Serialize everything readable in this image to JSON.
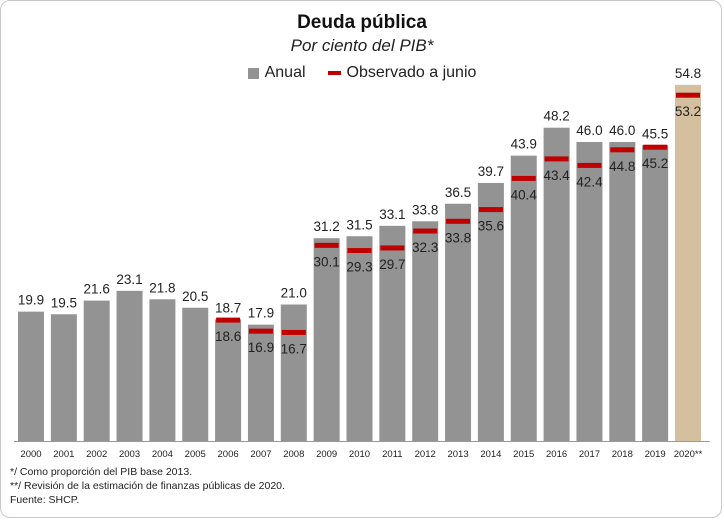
{
  "chart_data": {
    "type": "bar",
    "title": "Deuda pública",
    "subtitle": "Por ciento del PIB*",
    "categories": [
      "2000",
      "2001",
      "2002",
      "2003",
      "2004",
      "2005",
      "2006",
      "2007",
      "2008",
      "2009",
      "2010",
      "2011",
      "2012",
      "2013",
      "2014",
      "2015",
      "2016",
      "2017",
      "2018",
      "2019",
      "2020**"
    ],
    "series": [
      {
        "name": "Anual",
        "values": [
          19.9,
          19.5,
          21.6,
          23.1,
          21.8,
          20.5,
          18.7,
          17.9,
          21.0,
          31.2,
          31.5,
          33.1,
          33.8,
          36.5,
          39.7,
          43.9,
          48.2,
          46.0,
          46.0,
          45.5,
          54.8
        ]
      },
      {
        "name": "Observado a junio",
        "values": [
          null,
          null,
          null,
          null,
          null,
          null,
          18.6,
          16.9,
          16.7,
          30.1,
          29.3,
          29.7,
          32.3,
          33.8,
          35.6,
          40.4,
          43.4,
          42.4,
          44.8,
          45.2,
          53.2
        ]
      }
    ],
    "value_labels": {
      "anual": [
        "19.9",
        "19.5",
        "21.6",
        "23.1",
        "21.8",
        "20.5",
        "18.7",
        "17.9",
        "21.0",
        "31.2",
        "31.5",
        "33.1",
        "33.8",
        "36.5",
        "39.7",
        "43.9",
        "48.2",
        "46.0",
        "46.0",
        "45.5",
        "54.8"
      ],
      "junio": [
        "",
        "",
        "",
        "",
        "",
        "",
        "18.6",
        "16.9",
        "16.7",
        "30.1",
        "29.3",
        "29.7",
        "32.3",
        "33.8",
        "35.6",
        "40.4",
        "43.4",
        "42.4",
        "44.8",
        "45.2",
        "53.2"
      ]
    },
    "ylim": [
      0,
      60
    ],
    "grid": false,
    "legend_position": "top-center",
    "colors": {
      "anual": "#939393",
      "projection": "#d4c09e",
      "junio": "#c00000",
      "axis": "#999999"
    }
  },
  "footnotes": [
    "*/ Como proporción del PIB base 2013.",
    "**/ Revisión de la estimación de finanzas públicas de 2020.",
    "Fuente: SHCP."
  ]
}
